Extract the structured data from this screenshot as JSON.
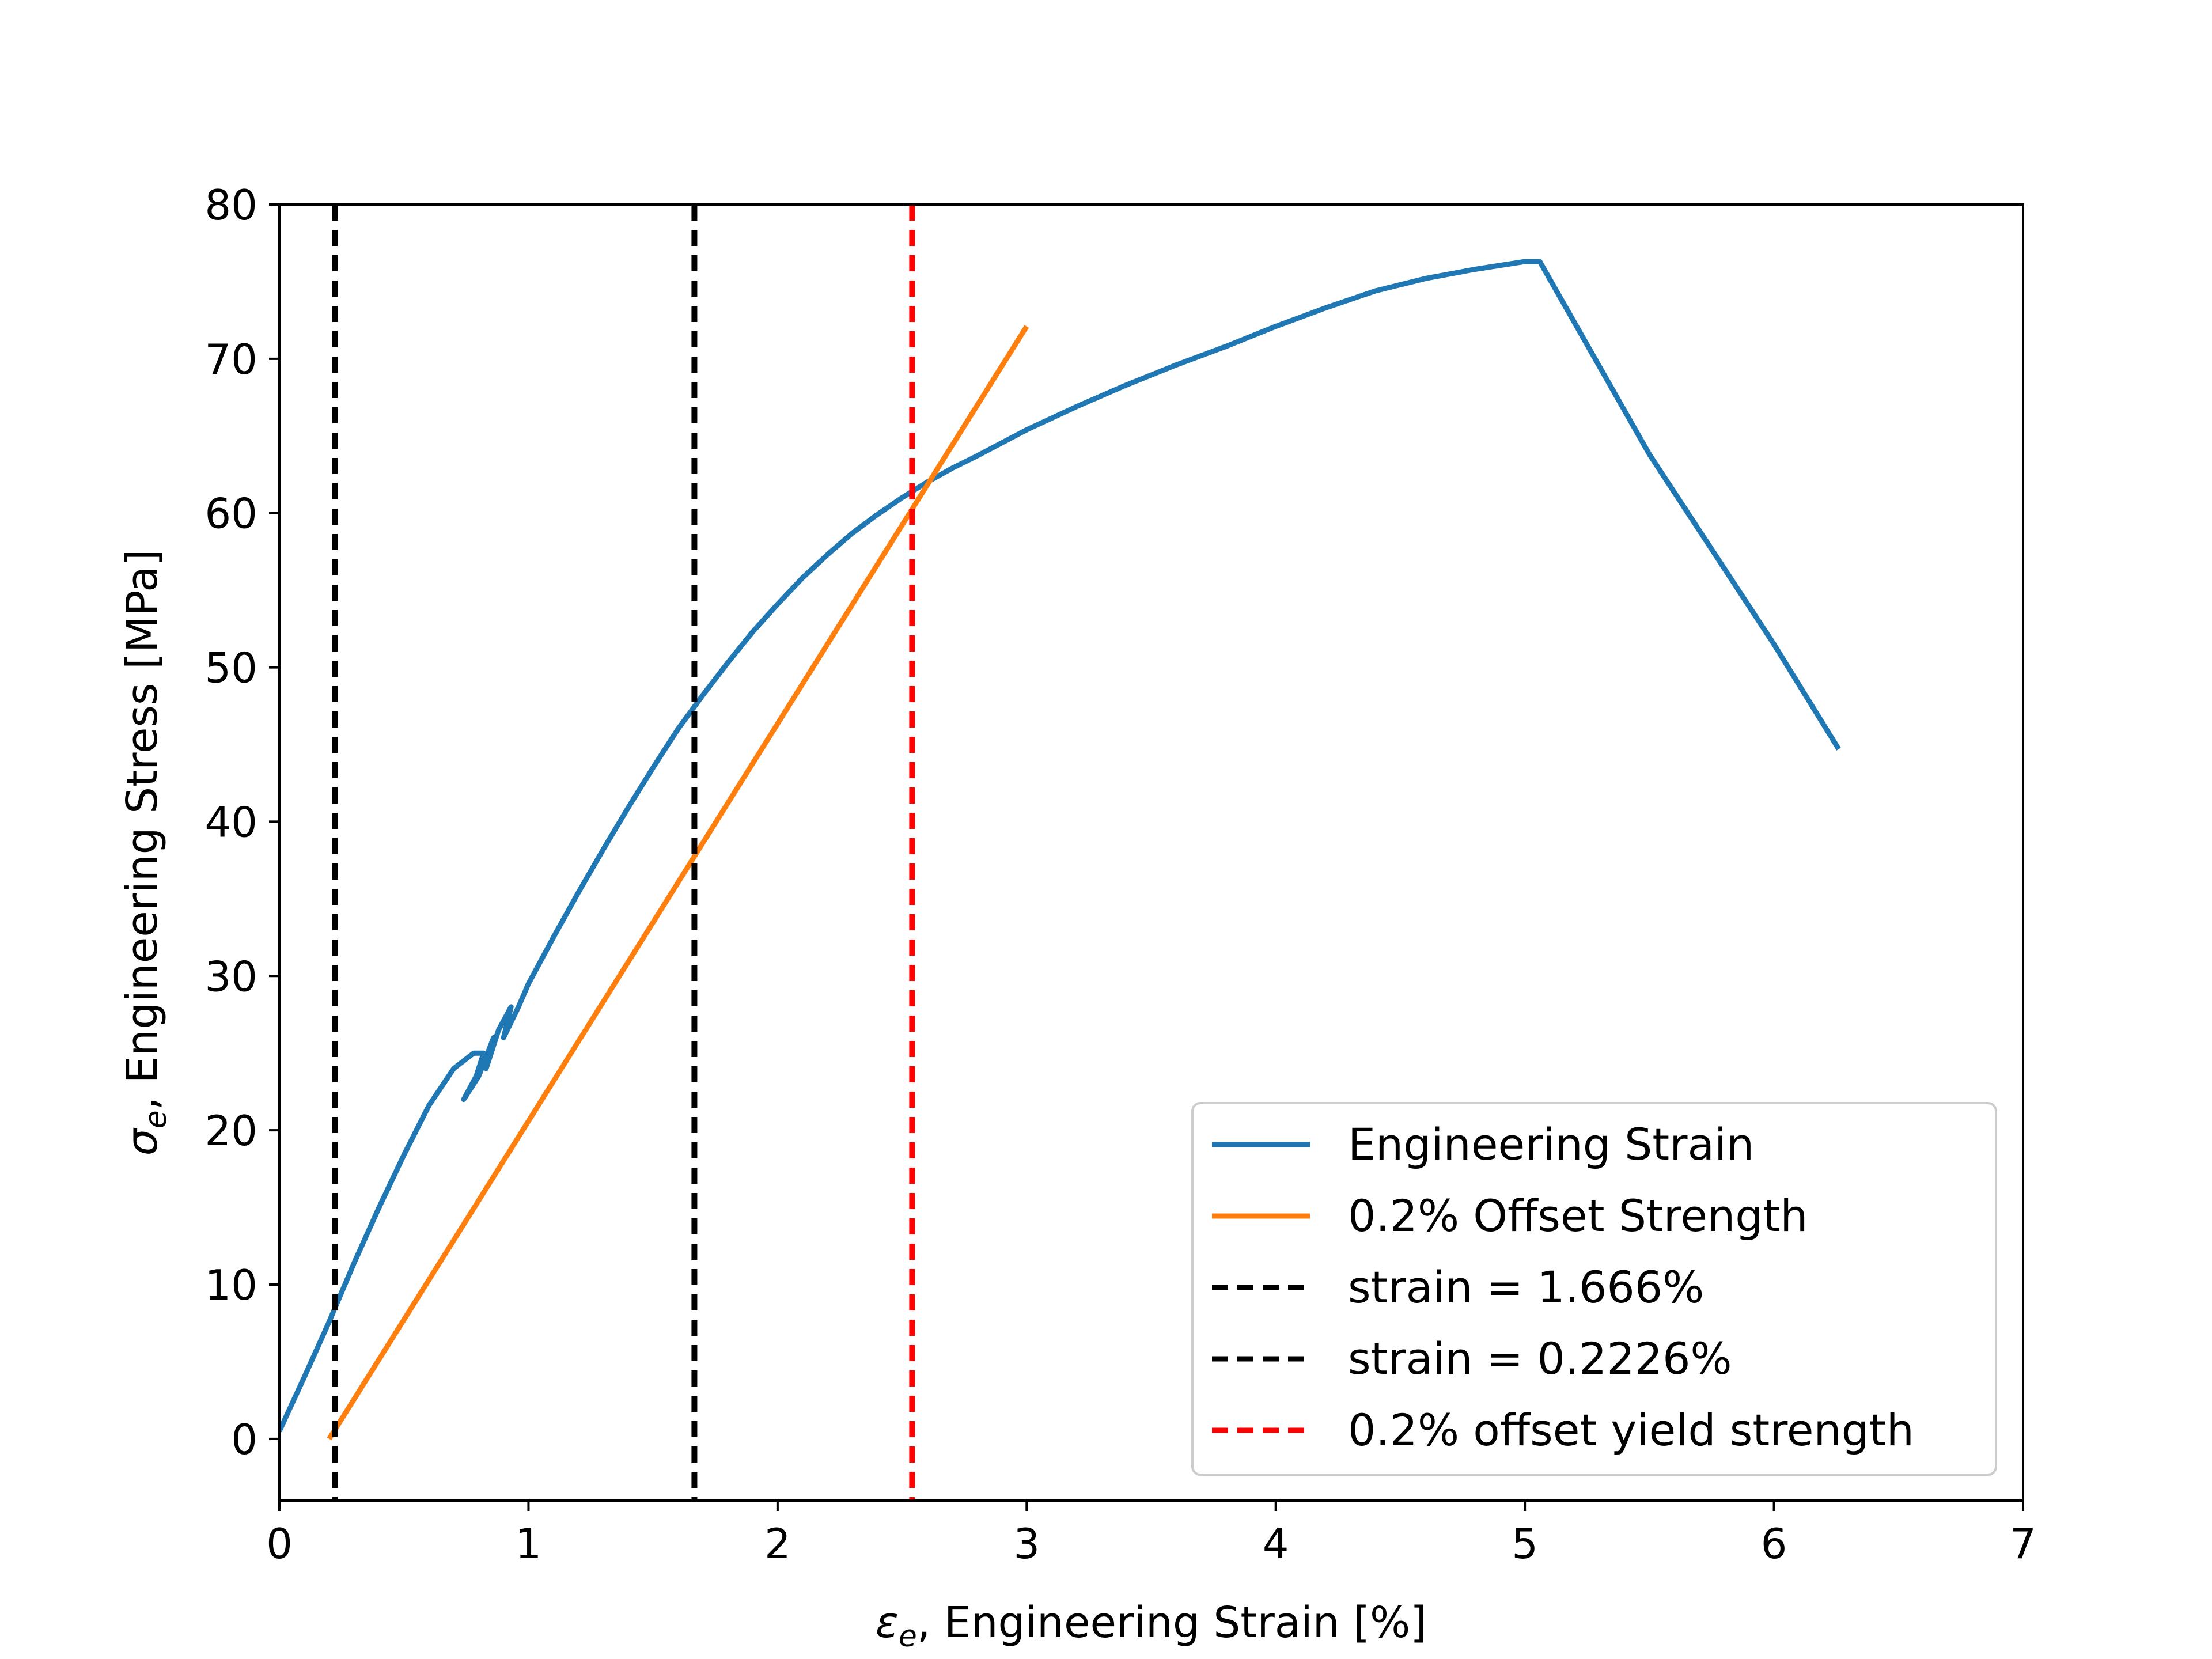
{
  "chart_data": {
    "type": "line",
    "xlabel": {
      "symbol": "ε",
      "sub": "e",
      "text": ", Engineering Strain  [%]"
    },
    "ylabel": {
      "symbol": "σ",
      "sub": "e",
      "text": ", Engineering Stress  [MPa]"
    },
    "xlim": [
      0,
      7
    ],
    "ylim": [
      -4,
      80
    ],
    "xticks": [
      0,
      1,
      2,
      3,
      4,
      5,
      6,
      7
    ],
    "yticks": [
      0,
      10,
      20,
      30,
      40,
      50,
      60,
      70,
      80
    ],
    "grid": false,
    "legend_position": "lower-right",
    "series": [
      {
        "name": "Engineering Strain",
        "color": "#1f77b4",
        "style": "solid",
        "x": [
          0.0,
          0.1,
          0.2,
          0.3,
          0.4,
          0.5,
          0.6,
          0.7,
          0.78,
          0.82,
          0.79,
          0.74,
          0.8,
          0.86,
          0.83,
          0.88,
          0.93,
          0.9,
          0.96,
          1.0,
          1.1,
          1.2,
          1.3,
          1.4,
          1.5,
          1.6,
          1.7,
          1.8,
          1.9,
          2.0,
          2.1,
          2.2,
          2.3,
          2.4,
          2.5,
          2.6,
          2.7,
          2.8,
          3.0,
          3.2,
          3.4,
          3.6,
          3.8,
          4.0,
          4.2,
          4.4,
          4.6,
          4.8,
          5.0,
          5.06,
          5.5,
          6.0,
          6.26
        ],
        "y": [
          0.5,
          4.0,
          7.6,
          11.4,
          15.0,
          18.4,
          21.6,
          24.0,
          25.0,
          25.0,
          23.5,
          22.0,
          23.5,
          26.0,
          24.0,
          26.5,
          28.0,
          26.0,
          28.0,
          29.5,
          32.5,
          35.4,
          38.2,
          40.9,
          43.5,
          46.0,
          48.2,
          50.3,
          52.3,
          54.1,
          55.8,
          57.3,
          58.7,
          59.9,
          61.0,
          62.0,
          62.9,
          63.7,
          65.4,
          66.9,
          68.3,
          69.6,
          70.8,
          72.1,
          73.3,
          74.4,
          75.2,
          75.8,
          76.3,
          76.3,
          63.8,
          51.5,
          44.7
        ]
      },
      {
        "name": "0.2% Offset Strength",
        "color": "#ff7f0e",
        "style": "solid",
        "x": [
          0.2,
          3.0
        ],
        "y": [
          0.0,
          72.1
        ]
      },
      {
        "name": "strain = 1.666%",
        "color": "#000000",
        "style": "dashed",
        "vline": 1.666
      },
      {
        "name": "strain = 0.2226%",
        "color": "#000000",
        "style": "dashed",
        "vline": 0.2226
      },
      {
        "name": "0.2% offset yield strength",
        "color": "#ff0000",
        "style": "dashed",
        "vline": 2.54
      }
    ]
  }
}
